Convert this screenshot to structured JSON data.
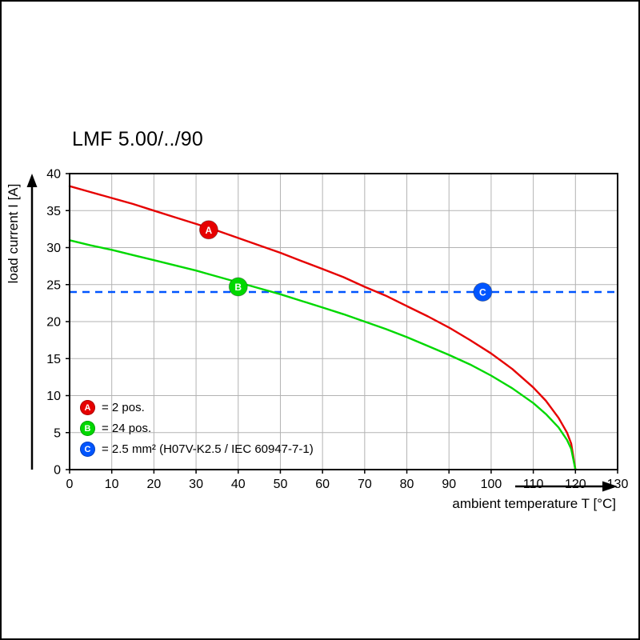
{
  "chart_data": {
    "type": "line",
    "title": "LMF 5.00/../90",
    "xlabel": "ambient temperature T [°C]",
    "ylabel": "load current I [A]",
    "xlim": [
      0,
      130
    ],
    "ylim": [
      0,
      40
    ],
    "x_ticks": [
      0,
      10,
      20,
      30,
      40,
      50,
      60,
      70,
      80,
      90,
      100,
      110,
      120,
      130
    ],
    "y_ticks": [
      0,
      5,
      10,
      15,
      20,
      25,
      30,
      35,
      40
    ],
    "grid": true,
    "legend_position": "inside bottom-left",
    "colors": {
      "grid": "#b3b3b3",
      "axis": "#000000",
      "curve_a": "#e60000",
      "curve_b": "#00d800",
      "reference": "#0055ff"
    },
    "series": [
      {
        "name": "A",
        "label": "2 pos.",
        "color": "#e60000",
        "points": [
          [
            0,
            38.3
          ],
          [
            5,
            37.5
          ],
          [
            10,
            36.7
          ],
          [
            15,
            35.9
          ],
          [
            20,
            35.0
          ],
          [
            25,
            34.1
          ],
          [
            30,
            33.2
          ],
          [
            35,
            32.3
          ],
          [
            40,
            31.3
          ],
          [
            45,
            30.3
          ],
          [
            50,
            29.3
          ],
          [
            55,
            28.2
          ],
          [
            60,
            27.1
          ],
          [
            65,
            26.0
          ],
          [
            70,
            24.7
          ],
          [
            75,
            23.5
          ],
          [
            80,
            22.1
          ],
          [
            85,
            20.7
          ],
          [
            90,
            19.2
          ],
          [
            95,
            17.5
          ],
          [
            100,
            15.7
          ],
          [
            105,
            13.6
          ],
          [
            110,
            11.1
          ],
          [
            113,
            9.3
          ],
          [
            116,
            7.0
          ],
          [
            118,
            5.0
          ],
          [
            119,
            3.5
          ],
          [
            120,
            0
          ]
        ]
      },
      {
        "name": "B",
        "label": "24 pos.",
        "color": "#00d800",
        "points": [
          [
            0,
            31.0
          ],
          [
            5,
            30.3
          ],
          [
            10,
            29.7
          ],
          [
            15,
            29.0
          ],
          [
            20,
            28.3
          ],
          [
            25,
            27.6
          ],
          [
            30,
            26.9
          ],
          [
            35,
            26.1
          ],
          [
            40,
            25.3
          ],
          [
            45,
            24.5
          ],
          [
            50,
            23.7
          ],
          [
            55,
            22.8
          ],
          [
            60,
            21.9
          ],
          [
            65,
            21.0
          ],
          [
            70,
            20.0
          ],
          [
            75,
            19.0
          ],
          [
            80,
            17.9
          ],
          [
            85,
            16.7
          ],
          [
            90,
            15.5
          ],
          [
            95,
            14.2
          ],
          [
            100,
            12.7
          ],
          [
            105,
            11.0
          ],
          [
            110,
            9.0
          ],
          [
            113,
            7.5
          ],
          [
            116,
            5.7
          ],
          [
            118,
            4.0
          ],
          [
            119,
            2.8
          ],
          [
            120,
            0
          ]
        ]
      }
    ],
    "reference_line": {
      "name": "C",
      "value": 24,
      "color": "#0055ff",
      "style": "dashed"
    },
    "markers": [
      {
        "letter": "A",
        "color": "#e60000",
        "x": 33,
        "y": 32.4
      },
      {
        "letter": "B",
        "color": "#00d800",
        "x": 40,
        "y": 24.7
      },
      {
        "letter": "C",
        "color": "#0055ff",
        "x": 98,
        "y": 24
      }
    ],
    "legend": [
      {
        "letter": "A",
        "color": "#e60000",
        "text": "= 2 pos."
      },
      {
        "letter": "B",
        "color": "#00d800",
        "text": "= 24 pos."
      },
      {
        "letter": "C",
        "color": "#0055ff",
        "text": "= 2.5 mm² (H07V-K2.5 / IEC 60947-7-1)"
      }
    ]
  }
}
